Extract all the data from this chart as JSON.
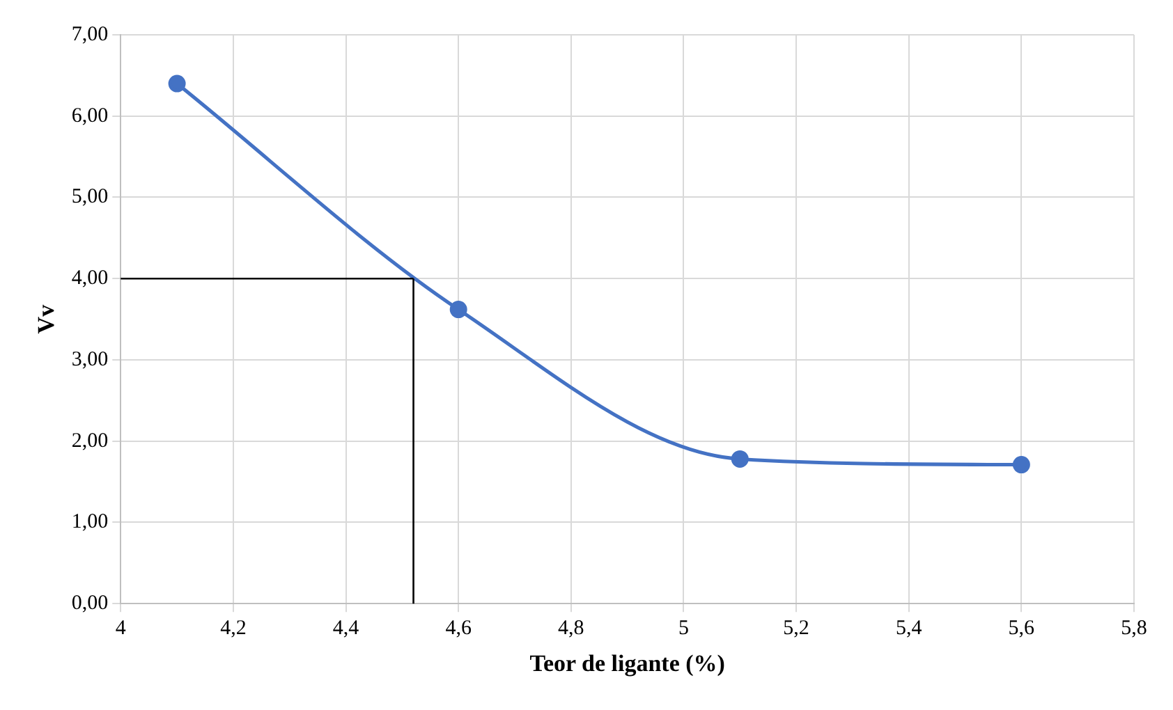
{
  "chart_data": {
    "type": "line",
    "xlabel": "Teor de ligante (%)",
    "ylabel": "Vv",
    "x": [
      4.1,
      4.6,
      5.1,
      5.6
    ],
    "series": [
      {
        "color": "#4472c4",
        "values": [
          6.4,
          3.62,
          1.78,
          1.71
        ]
      }
    ],
    "xlim": [
      4,
      5.8
    ],
    "xticks": [
      4,
      {
        "value": 4.2,
        "label": "4,2"
      },
      {
        "value": 4.4,
        "label": "4,4"
      },
      {
        "value": 4.6,
        "label": "4,6"
      },
      {
        "value": 4.8,
        "label": "4,8"
      },
      5,
      {
        "value": 5.2,
        "label": "5,2"
      },
      {
        "value": 5.4,
        "label": "5,4"
      },
      {
        "value": 5.6,
        "label": "5,6"
      },
      {
        "value": 5.8,
        "label": "5,8"
      }
    ],
    "ylim": [
      0,
      7
    ],
    "yticks": [
      {
        "value": 0,
        "label": "0,00"
      },
      {
        "value": 1,
        "label": "1,00"
      },
      {
        "value": 2,
        "label": "2,00"
      },
      {
        "value": 3,
        "label": "3,00"
      },
      {
        "value": 4,
        "label": "4,00"
      },
      {
        "value": 5,
        "label": "5,00"
      },
      {
        "value": 6,
        "label": "6,00"
      },
      {
        "value": 7,
        "label": "7,00"
      }
    ],
    "ref_lines": [
      {
        "axis": "y",
        "value": 4,
        "color": "#000000"
      },
      {
        "axis": "x",
        "value": 4.52,
        "color": "#000000"
      }
    ],
    "grid": true,
    "marker": "circle",
    "line_style": "solid",
    "legend": false
  }
}
